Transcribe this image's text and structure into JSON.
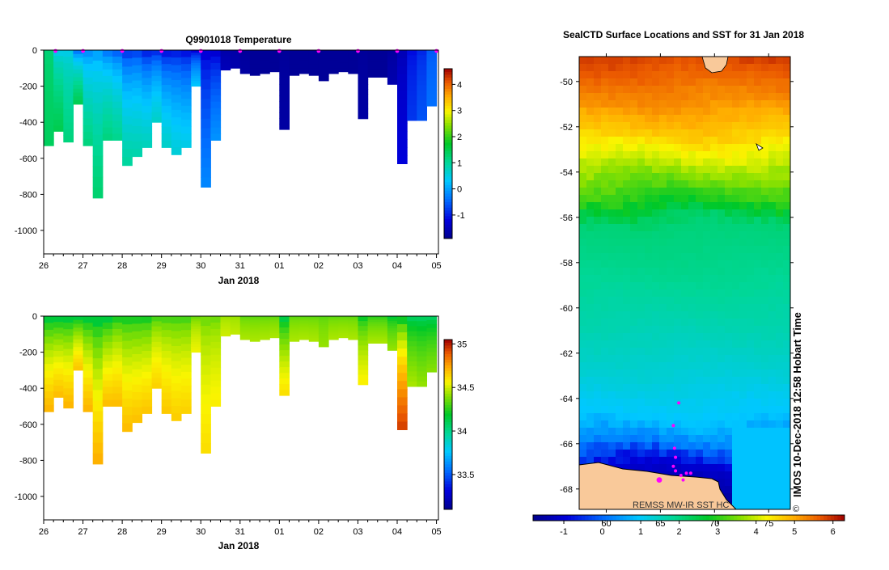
{
  "chart_data": [
    {
      "id": "temperature",
      "type": "heatmap",
      "title": "Q9901018  Temperature",
      "xlabel": "Jan 2018",
      "x_ticks": [
        "26",
        "27",
        "28",
        "29",
        "30",
        "31",
        "01",
        "02",
        "03",
        "04",
        "05"
      ],
      "y_ticks": [
        "0",
        "-200",
        "-400",
        "-600",
        "-800",
        "-1000"
      ],
      "ylim": [
        -1130,
        0
      ],
      "colorbar": {
        "range": [
          -1.9,
          4.6
        ],
        "ticks": [
          "-1",
          "0",
          "1",
          "2",
          "3",
          "4"
        ]
      },
      "profiles": [
        {
          "day": 0.0,
          "depth": 530,
          "surface": 1.2,
          "deep": 1.4
        },
        {
          "day": 0.25,
          "depth": 450,
          "surface": 0.2,
          "deep": 1.5
        },
        {
          "day": 0.5,
          "depth": 510,
          "surface": 0.3,
          "deep": 1.2
        },
        {
          "day": 0.75,
          "depth": 300,
          "surface": -0.8,
          "deep": 1.5
        },
        {
          "day": 1.0,
          "depth": 530,
          "surface": -0.5,
          "deep": 1.2
        },
        {
          "day": 1.25,
          "depth": 820,
          "surface": -0.3,
          "deep": 1.3
        },
        {
          "day": 1.5,
          "depth": 500,
          "surface": -0.7,
          "deep": 1.2
        },
        {
          "day": 1.75,
          "depth": 500,
          "surface": -0.9,
          "deep": 1.1
        },
        {
          "day": 2.0,
          "depth": 640,
          "surface": -1.2,
          "deep": 1.0
        },
        {
          "day": 2.25,
          "depth": 590,
          "surface": -1.1,
          "deep": 0.9
        },
        {
          "day": 2.5,
          "depth": 540,
          "surface": -1.4,
          "deep": 0.8
        },
        {
          "day": 2.75,
          "depth": 400,
          "surface": -1.3,
          "deep": 0.7
        },
        {
          "day": 3.0,
          "depth": 540,
          "surface": -1.5,
          "deep": 0.7
        },
        {
          "day": 3.25,
          "depth": 580,
          "surface": -1.4,
          "deep": 0.6
        },
        {
          "day": 3.5,
          "depth": 540,
          "surface": -1.5,
          "deep": 0.5
        },
        {
          "day": 3.75,
          "depth": 200,
          "surface": -1.6,
          "deep": 0.3
        },
        {
          "day": 4.0,
          "depth": 760,
          "surface": -1.5,
          "deep": -0.2
        },
        {
          "day": 4.25,
          "depth": 500,
          "surface": -1.6,
          "deep": -0.1
        },
        {
          "day": 4.5,
          "depth": 110,
          "surface": -1.7,
          "deep": -1.5
        },
        {
          "day": 4.75,
          "depth": 100,
          "surface": -1.7,
          "deep": -1.6
        },
        {
          "day": 5.0,
          "depth": 130,
          "surface": -1.8,
          "deep": -1.7
        },
        {
          "day": 5.25,
          "depth": 140,
          "surface": -1.8,
          "deep": -1.8
        },
        {
          "day": 5.5,
          "depth": 130,
          "surface": -1.8,
          "deep": -1.8
        },
        {
          "day": 5.75,
          "depth": 120,
          "surface": -1.8,
          "deep": -1.8
        },
        {
          "day": 6.0,
          "depth": 440,
          "surface": -1.8,
          "deep": -1.7
        },
        {
          "day": 6.25,
          "depth": 140,
          "surface": -1.8,
          "deep": -1.8
        },
        {
          "day": 6.5,
          "depth": 130,
          "surface": -1.8,
          "deep": -1.8
        },
        {
          "day": 6.75,
          "depth": 140,
          "surface": -1.8,
          "deep": -1.8
        },
        {
          "day": 7.0,
          "depth": 170,
          "surface": -1.8,
          "deep": -1.8
        },
        {
          "day": 7.25,
          "depth": 130,
          "surface": -1.8,
          "deep": -1.8
        },
        {
          "day": 7.5,
          "depth": 120,
          "surface": -1.8,
          "deep": -1.8
        },
        {
          "day": 7.75,
          "depth": 130,
          "surface": -1.8,
          "deep": -1.8
        },
        {
          "day": 8.0,
          "depth": 380,
          "surface": -1.8,
          "deep": -1.7
        },
        {
          "day": 8.25,
          "depth": 150,
          "surface": -1.8,
          "deep": -1.8
        },
        {
          "day": 8.5,
          "depth": 150,
          "surface": -1.8,
          "deep": -1.8
        },
        {
          "day": 8.75,
          "depth": 190,
          "surface": -1.8,
          "deep": -1.6
        },
        {
          "day": 9.0,
          "depth": 630,
          "surface": -1.6,
          "deep": -1.2
        },
        {
          "day": 9.25,
          "depth": 390,
          "surface": -1.2,
          "deep": -0.8
        },
        {
          "day": 9.5,
          "depth": 390,
          "surface": -1.0,
          "deep": -0.6
        },
        {
          "day": 9.75,
          "depth": 310,
          "surface": -0.6,
          "deep": -0.4
        }
      ],
      "markers": [
        0.3,
        1.0,
        2.0,
        3.0,
        4.0,
        5.0,
        6.0,
        7.0,
        8.0,
        9.0,
        10.0
      ]
    },
    {
      "id": "salinity",
      "type": "heatmap",
      "title": "",
      "xlabel": "Jan 2018",
      "x_ticks": [
        "26",
        "27",
        "28",
        "29",
        "30",
        "31",
        "01",
        "02",
        "03",
        "04",
        "05"
      ],
      "y_ticks": [
        "0",
        "-200",
        "-400",
        "-600",
        "-800",
        "-1000"
      ],
      "ylim": [
        -1130,
        0
      ],
      "colorbar": {
        "range": [
          33.1,
          35.05
        ],
        "ticks": [
          "33.5",
          "34",
          "34.5",
          "35"
        ]
      },
      "profiles": [
        {
          "day": 0.0,
          "depth": 530,
          "surface": 34.0,
          "deep": 34.72
        },
        {
          "day": 0.25,
          "depth": 450,
          "surface": 34.0,
          "deep": 34.7
        },
        {
          "day": 0.5,
          "depth": 510,
          "surface": 34.0,
          "deep": 34.72
        },
        {
          "day": 0.75,
          "depth": 300,
          "surface": 34.0,
          "deep": 34.68
        },
        {
          "day": 1.0,
          "depth": 530,
          "surface": 34.0,
          "deep": 34.72
        },
        {
          "day": 1.25,
          "depth": 820,
          "surface": 34.0,
          "deep": 34.73
        },
        {
          "day": 1.5,
          "depth": 500,
          "surface": 34.0,
          "deep": 34.7
        },
        {
          "day": 1.75,
          "depth": 500,
          "surface": 34.1,
          "deep": 34.7
        },
        {
          "day": 2.0,
          "depth": 640,
          "surface": 34.1,
          "deep": 34.7
        },
        {
          "day": 2.25,
          "depth": 590,
          "surface": 34.1,
          "deep": 34.69
        },
        {
          "day": 2.5,
          "depth": 540,
          "surface": 34.1,
          "deep": 34.68
        },
        {
          "day": 2.75,
          "depth": 400,
          "surface": 34.2,
          "deep": 34.65
        },
        {
          "day": 3.0,
          "depth": 540,
          "surface": 34.2,
          "deep": 34.67
        },
        {
          "day": 3.25,
          "depth": 580,
          "surface": 34.2,
          "deep": 34.66
        },
        {
          "day": 3.5,
          "depth": 540,
          "surface": 34.2,
          "deep": 34.65
        },
        {
          "day": 3.75,
          "depth": 200,
          "surface": 34.3,
          "deep": 34.55
        },
        {
          "day": 4.0,
          "depth": 760,
          "surface": 34.3,
          "deep": 34.62
        },
        {
          "day": 4.25,
          "depth": 500,
          "surface": 34.3,
          "deep": 34.58
        },
        {
          "day": 4.5,
          "depth": 110,
          "surface": 34.4,
          "deep": 34.5
        },
        {
          "day": 4.75,
          "depth": 100,
          "surface": 34.4,
          "deep": 34.48
        },
        {
          "day": 5.0,
          "depth": 130,
          "surface": 34.3,
          "deep": 34.45
        },
        {
          "day": 5.25,
          "depth": 140,
          "surface": 34.3,
          "deep": 34.45
        },
        {
          "day": 5.5,
          "depth": 130,
          "surface": 34.3,
          "deep": 34.45
        },
        {
          "day": 5.75,
          "depth": 120,
          "surface": 34.3,
          "deep": 34.45
        },
        {
          "day": 6.0,
          "depth": 440,
          "surface": 34.0,
          "deep": 34.62
        },
        {
          "day": 6.25,
          "depth": 140,
          "surface": 34.3,
          "deep": 34.45
        },
        {
          "day": 6.5,
          "depth": 130,
          "surface": 34.3,
          "deep": 34.45
        },
        {
          "day": 6.75,
          "depth": 140,
          "surface": 34.3,
          "deep": 34.45
        },
        {
          "day": 7.0,
          "depth": 170,
          "surface": 34.3,
          "deep": 34.42
        },
        {
          "day": 7.25,
          "depth": 130,
          "surface": 34.3,
          "deep": 34.45
        },
        {
          "day": 7.5,
          "depth": 120,
          "surface": 34.3,
          "deep": 34.45
        },
        {
          "day": 7.75,
          "depth": 130,
          "surface": 34.3,
          "deep": 34.45
        },
        {
          "day": 8.0,
          "depth": 380,
          "surface": 34.1,
          "deep": 34.58
        },
        {
          "day": 8.25,
          "depth": 150,
          "surface": 34.2,
          "deep": 34.45
        },
        {
          "day": 8.5,
          "depth": 150,
          "surface": 34.2,
          "deep": 34.45
        },
        {
          "day": 8.75,
          "depth": 190,
          "surface": 34.1,
          "deep": 34.42
        },
        {
          "day": 9.0,
          "depth": 630,
          "surface": 34.0,
          "deep": 34.95
        },
        {
          "day": 9.25,
          "depth": 390,
          "surface": 34.0,
          "deep": 34.45
        },
        {
          "day": 9.5,
          "depth": 390,
          "surface": 34.0,
          "deep": 34.42
        },
        {
          "day": 9.75,
          "depth": 310,
          "surface": 34.0,
          "deep": 34.4
        }
      ]
    },
    {
      "id": "sst_map",
      "type": "heatmap",
      "title": "SealCTD Surface Locations and SST for 31 Jan 2018",
      "y_ticks": [
        "-50",
        "-52",
        "-54",
        "-56",
        "-58",
        "-60",
        "-62",
        "-64",
        "-66",
        "-68"
      ],
      "lat_range": [
        -68.9,
        -48.9
      ],
      "x_ticks": [
        "60",
        "65",
        "70",
        "75"
      ],
      "lon_range": [
        57.5,
        77.0
      ],
      "colorbar": {
        "range": [
          -1.8,
          6.3
        ],
        "ticks": [
          "-1",
          "0",
          "1",
          "2",
          "3",
          "4",
          "5",
          "6"
        ]
      },
      "sst_by_latitude": [
        {
          "lat": -49.0,
          "sst": 5.8
        },
        {
          "lat": -51.0,
          "sst": 5.2
        },
        {
          "lat": -52.5,
          "sst": 4.6
        },
        {
          "lat": -54.0,
          "sst": 3.7
        },
        {
          "lat": -55.3,
          "sst": 2.9
        },
        {
          "lat": -56.3,
          "sst": 2.1
        },
        {
          "lat": -58.5,
          "sst": 1.9
        },
        {
          "lat": -61.0,
          "sst": 1.6
        },
        {
          "lat": -63.0,
          "sst": 1.3
        },
        {
          "lat": -65.0,
          "sst": 0.9
        },
        {
          "lat": -66.0,
          "sst": 0.2
        },
        {
          "lat": -67.0,
          "sst": -1.0
        },
        {
          "lat": -68.9,
          "sst": -1.7
        }
      ],
      "seal_locations": [
        {
          "lon": 66.7,
          "lat": -64.2
        },
        {
          "lon": 66.2,
          "lat": -65.2
        },
        {
          "lon": 66.3,
          "lat": -66.2
        },
        {
          "lon": 66.4,
          "lat": -66.6
        },
        {
          "lon": 66.2,
          "lat": -67.0
        },
        {
          "lon": 66.4,
          "lat": -67.2
        },
        {
          "lon": 66.9,
          "lat": -67.4
        },
        {
          "lon": 67.4,
          "lat": -67.3
        },
        {
          "lon": 67.8,
          "lat": -67.3
        },
        {
          "lon": 67.1,
          "lat": -67.6
        }
      ],
      "station": {
        "lon": 64.9,
        "lat": -67.6
      },
      "credit": "REMSS MW-IR SST HC",
      "side_label": "IMOS 10-Dec-2018 12:58 Hobart Time",
      "copyright": "©"
    }
  ]
}
